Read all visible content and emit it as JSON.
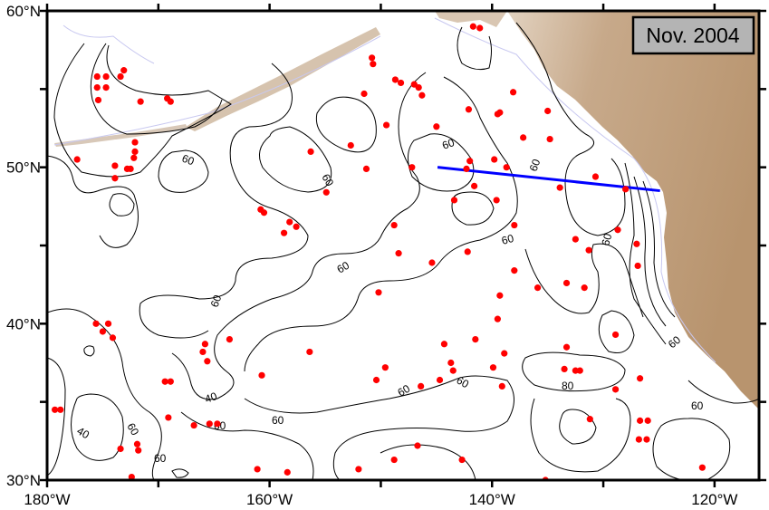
{
  "map": {
    "date_label": "Nov. 2004",
    "lon_range": [
      -180,
      -116
    ],
    "lat_range": [
      30,
      60
    ],
    "lon_ticks": [
      {
        "value": -180,
        "label": "180°W"
      },
      {
        "value": -160,
        "label": "160°W"
      },
      {
        "value": -140,
        "label": "140°W"
      },
      {
        "value": -120,
        "label": "120°W"
      }
    ],
    "minor_lon_ticks": [
      -170,
      -150,
      -130
    ],
    "lat_ticks": [
      {
        "value": 60,
        "label": "60°N"
      },
      {
        "value": 50,
        "label": "50°N"
      },
      {
        "value": 40,
        "label": "40°N"
      },
      {
        "value": 30,
        "label": "30°N"
      }
    ],
    "minor_lat_ticks": [
      55,
      45,
      35
    ],
    "contour_labels": [
      "60",
      "60",
      "60",
      "60",
      "60",
      "60",
      "60",
      "60",
      "60",
      "60",
      "40",
      "60",
      "60",
      "80",
      "60",
      "60",
      "40",
      "60",
      "60"
    ],
    "colors": {
      "stations": "#ff0000",
      "transect": "#0000ff",
      "land": "#c4a88a",
      "label_box": "#b4b4b4"
    },
    "transect": [
      [
        -144.9,
        50.0
      ],
      [
        -124.9,
        48.5
      ]
    ],
    "stations": [
      [
        -175.5,
        55.8
      ],
      [
        -175.5,
        55.1
      ],
      [
        -175.4,
        54.3
      ],
      [
        -174.7,
        55.8
      ],
      [
        -174.7,
        55.1
      ],
      [
        -173.1,
        56.2
      ],
      [
        -173.4,
        55.8
      ],
      [
        -171.6,
        54.2
      ],
      [
        -169.2,
        54.4
      ],
      [
        -168.9,
        54.2
      ],
      [
        -177.3,
        50.5
      ],
      [
        -173.9,
        50.1
      ],
      [
        -173.9,
        49.3
      ],
      [
        -172.8,
        49.9
      ],
      [
        -172.5,
        49.9
      ],
      [
        -172.1,
        51.6
      ],
      [
        -172.1,
        51.0
      ],
      [
        -172.2,
        50.6
      ],
      [
        -160.8,
        47.3
      ],
      [
        -160.5,
        47.1
      ],
      [
        -158.2,
        46.5
      ],
      [
        -157.6,
        46.2
      ],
      [
        -158.7,
        45.8
      ],
      [
        -156.3,
        51.0
      ],
      [
        -154.9,
        48.4
      ],
      [
        -152.7,
        51.4
      ],
      [
        -151.3,
        49.9
      ],
      [
        -151.5,
        54.7
      ],
      [
        -150.8,
        57.0
      ],
      [
        -150.7,
        56.6
      ],
      [
        -148.7,
        55.6
      ],
      [
        -148.2,
        55.4
      ],
      [
        -149.5,
        52.7
      ],
      [
        -147.0,
        55.3
      ],
      [
        -146.6,
        55.1
      ],
      [
        -146.3,
        54.6
      ],
      [
        -147.2,
        50.0
      ],
      [
        -145.0,
        52.6
      ],
      [
        -141.7,
        59.0
      ],
      [
        -141.1,
        58.9
      ],
      [
        -142.1,
        53.7
      ],
      [
        -139.3,
        53.5
      ],
      [
        -138.1,
        54.8
      ],
      [
        -137.2,
        51.9
      ],
      [
        -135.0,
        53.6
      ],
      [
        -134.8,
        51.8
      ],
      [
        -142.3,
        49.9
      ],
      [
        -142.0,
        50.4
      ],
      [
        -141.6,
        48.8
      ],
      [
        -139.8,
        50.5
      ],
      [
        -143.4,
        47.9
      ],
      [
        -139.6,
        47.9
      ],
      [
        -138.0,
        46.3
      ],
      [
        -142.2,
        44.6
      ],
      [
        -145.4,
        43.9
      ],
      [
        -148.4,
        44.5
      ],
      [
        -148.8,
        46.3
      ],
      [
        -138.0,
        43.4
      ],
      [
        -135.9,
        42.3
      ],
      [
        -139.3,
        41.8
      ],
      [
        -139.5,
        40.3
      ],
      [
        -141.5,
        39.0
      ],
      [
        -144.3,
        38.7
      ],
      [
        -143.7,
        37.5
      ],
      [
        -143.5,
        37.0
      ],
      [
        -144.7,
        36.4
      ],
      [
        -146.4,
        36.0
      ],
      [
        -150.2,
        42.0
      ],
      [
        -149.6,
        37.2
      ],
      [
        -150.4,
        36.4
      ],
      [
        -138.9,
        38.1
      ],
      [
        -139.9,
        37.2
      ],
      [
        -139.1,
        36.0
      ],
      [
        -133.3,
        42.6
      ],
      [
        -131.7,
        42.3
      ],
      [
        -132.5,
        45.4
      ],
      [
        -131.3,
        44.7
      ],
      [
        -133.9,
        48.7
      ],
      [
        -130.7,
        49.4
      ],
      [
        -128.0,
        48.6
      ],
      [
        -128.7,
        46.0
      ],
      [
        -127.0,
        45.1
      ],
      [
        -126.9,
        43.7
      ],
      [
        -133.3,
        38.5
      ],
      [
        -133.5,
        37.1
      ],
      [
        -132.5,
        37.0
      ],
      [
        -132.1,
        37.0
      ],
      [
        -128.9,
        39.3
      ],
      [
        -128.9,
        35.8
      ],
      [
        -126.7,
        36.5
      ],
      [
        -126.7,
        33.8
      ],
      [
        -126.0,
        33.8
      ],
      [
        -126.8,
        32.6
      ],
      [
        -126.1,
        32.6
      ],
      [
        -131.2,
        33.9
      ],
      [
        -135.2,
        30.0
      ],
      [
        -121.1,
        30.8
      ],
      [
        -142.7,
        31.3
      ],
      [
        -146.7,
        32.2
      ],
      [
        -148.8,
        31.3
      ],
      [
        -152.0,
        30.7
      ],
      [
        -158.4,
        30.5
      ],
      [
        -161.1,
        30.7
      ],
      [
        -160.7,
        36.7
      ],
      [
        -156.4,
        38.2
      ],
      [
        -165.6,
        37.6
      ],
      [
        -166.0,
        38.2
      ],
      [
        -165.8,
        38.7
      ],
      [
        -163.6,
        39.0
      ],
      [
        -169.4,
        36.3
      ],
      [
        -168.9,
        36.3
      ],
      [
        -169.1,
        34.0
      ],
      [
        -166.8,
        33.5
      ],
      [
        -165.4,
        33.6
      ],
      [
        -164.7,
        33.6
      ],
      [
        -171.9,
        32.3
      ],
      [
        -171.8,
        31.9
      ],
      [
        -173.4,
        32.0
      ],
      [
        -172.4,
        30.2
      ],
      [
        -175.6,
        40.0
      ],
      [
        -175.0,
        39.5
      ],
      [
        -174.1,
        39.1
      ],
      [
        -174.5,
        40.0
      ],
      [
        -179.3,
        34.5
      ],
      [
        -178.8,
        34.5
      ],
      [
        -138.7,
        50.0
      ],
      [
        -139.5,
        53.4
      ]
    ]
  }
}
